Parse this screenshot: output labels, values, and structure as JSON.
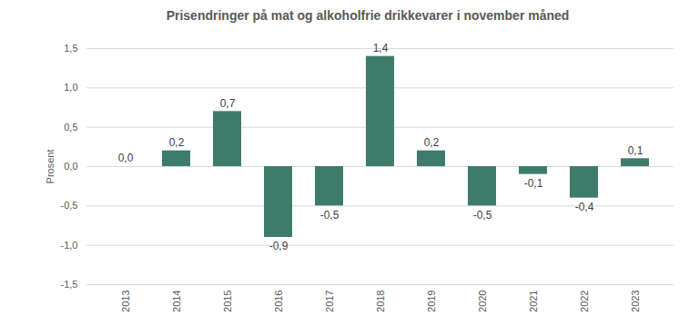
{
  "chart_data": {
    "type": "bar",
    "title": "Prisendringer på mat og alkoholfrie drikkevarer i november måned",
    "y_label": "Prosent",
    "categories": [
      "2013",
      "2014",
      "2015",
      "2016",
      "2017",
      "2018",
      "2019",
      "2020",
      "2021",
      "2022",
      "2023"
    ],
    "values": [
      0.0,
      0.2,
      0.7,
      -0.9,
      -0.5,
      1.4,
      0.2,
      -0.5,
      -0.1,
      -0.4,
      0.1
    ],
    "value_labels": [
      "0,0",
      "0,2",
      "0,7",
      "-0,9",
      "-0,5",
      "1,4",
      "0,2",
      "-0,5",
      "-0,1",
      "-0,4",
      "0,1"
    ],
    "color": "#3e7b6b",
    "ylim": [
      -1.5,
      1.5
    ],
    "yticks": [
      {
        "value": -1.5,
        "label": "-1,5"
      },
      {
        "value": -1.0,
        "label": "-1,0"
      },
      {
        "value": -0.5,
        "label": "-0,5"
      },
      {
        "value": 0.0,
        "label": "0,0"
      },
      {
        "value": 0.5,
        "label": "0,5"
      },
      {
        "value": 1.0,
        "label": "1,0"
      },
      {
        "value": 1.5,
        "label": "1,5"
      }
    ],
    "grid": true,
    "data_labels": true
  }
}
